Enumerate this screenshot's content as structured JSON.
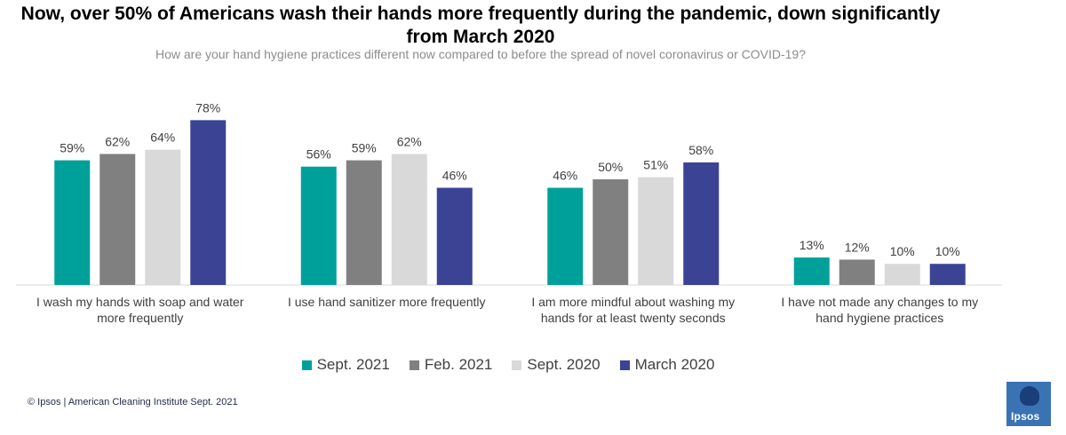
{
  "title": "Now, over 50% of Americans wash their hands more frequently during the pandemic, down significantly from March 2020",
  "subtitle": "How are your hand hygiene practices different now compared to before the spread of novel coronavirus or COVID-19?",
  "footer": "© Ipsos | American Cleaning Institute Sept. 2021",
  "logo_text": "Ipsos",
  "chart_data": {
    "type": "bar",
    "categories": [
      [
        "I wash my hands with soap and water",
        "more frequently"
      ],
      [
        "I use hand sanitizer more frequently"
      ],
      [
        "I am more mindful about washing my",
        "hands for at least twenty seconds"
      ],
      [
        "I have not made any changes to my",
        "hand hygiene practices"
      ]
    ],
    "series": [
      {
        "name": "Sept. 2021",
        "color": "#00a09a",
        "values": [
          59,
          56,
          46,
          13
        ]
      },
      {
        "name": "Feb. 2021",
        "color": "#808080",
        "values": [
          62,
          59,
          50,
          12
        ]
      },
      {
        "name": "Sept. 2020",
        "color": "#d9d9d9",
        "values": [
          64,
          62,
          51,
          10
        ]
      },
      {
        "name": "March 2020",
        "color": "#3b4395",
        "values": [
          78,
          46,
          58,
          10
        ]
      }
    ],
    "value_suffix": "%",
    "ylim": [
      0,
      100
    ],
    "legend_position": "bottom",
    "grid": false
  }
}
